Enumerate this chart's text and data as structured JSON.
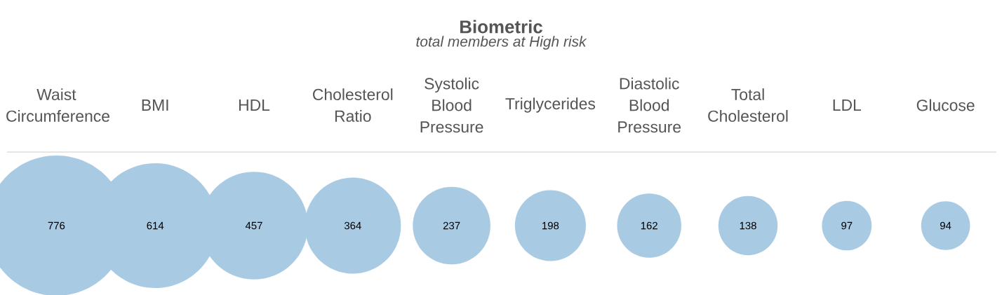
{
  "chart_data": {
    "type": "other",
    "title": "Biometric",
    "subtitle": "total members at High risk",
    "categories": [
      "Waist Circumference",
      "BMI",
      "HDL",
      "Cholesterol Ratio",
      "Systolic Blood Pressure",
      "Triglycerides",
      "Diastolic Blood Pressure",
      "Total Cholesterol",
      "LDL",
      "Glucose"
    ],
    "values": [
      776,
      614,
      457,
      364,
      237,
      198,
      162,
      138,
      97,
      94
    ],
    "color": "#a9cae3",
    "data_labels": true
  }
}
